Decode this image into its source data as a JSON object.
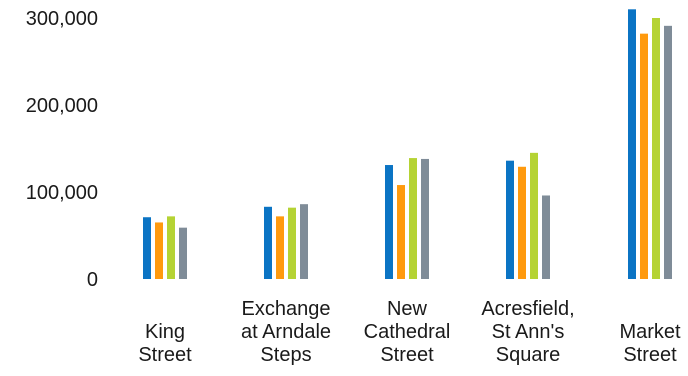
{
  "chart_data": {
    "type": "bar",
    "categories": [
      [
        "King",
        "Street"
      ],
      [
        "Exchange",
        "at Arndale",
        "Steps"
      ],
      [
        "New",
        "Cathedral",
        "Street"
      ],
      [
        "Acresfield,",
        "St Ann's",
        "Square"
      ],
      [
        "Market",
        "Street"
      ]
    ],
    "series": [
      {
        "color": "#0b74c4",
        "values": [
          71000,
          83000,
          131000,
          136000,
          310000
        ]
      },
      {
        "color": "#ff9a0e",
        "values": [
          65000,
          72000,
          108000,
          129000,
          282000
        ]
      },
      {
        "color": "#b5d334",
        "values": [
          72000,
          82000,
          139000,
          145000,
          300000
        ]
      },
      {
        "color": "#7f8c98",
        "values": [
          59000,
          86000,
          138000,
          96000,
          291000
        ]
      }
    ],
    "yticks": [
      {
        "value": 0,
        "label": "0"
      },
      {
        "value": 100000,
        "label": "100,000"
      },
      {
        "value": 200000,
        "label": "200,000"
      },
      {
        "value": 300000,
        "label": "300,000"
      }
    ],
    "ylim": [
      0,
      300000
    ],
    "grid": false,
    "legend": "none"
  }
}
